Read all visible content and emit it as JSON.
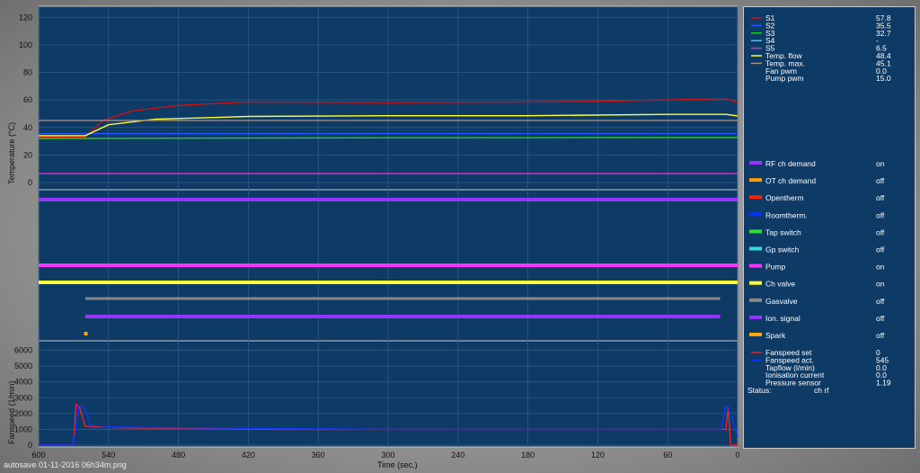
{
  "chart_data": [
    {
      "type": "line",
      "panel": "temperature",
      "ylabel": "Temperature (°C)",
      "ylim": [
        0,
        128
      ],
      "yticks": [
        0,
        20,
        40,
        60,
        80,
        100,
        120
      ],
      "xlim": [
        600,
        0
      ],
      "series": [
        {
          "name": "S1",
          "color": "#cc1111",
          "x": [
            600,
            560,
            545,
            520,
            480,
            420,
            300,
            180,
            120,
            60,
            10,
            3,
            0
          ],
          "y": [
            33,
            33,
            45,
            52,
            56,
            58.5,
            58,
            58.5,
            59,
            60,
            61,
            59,
            57.8
          ]
        },
        {
          "name": "S2",
          "color": "#2255ff",
          "x": [
            600,
            0
          ],
          "y": [
            35.5,
            35.5
          ]
        },
        {
          "name": "S3",
          "color": "#22cc22",
          "x": [
            600,
            300,
            0
          ],
          "y": [
            32,
            32.5,
            32.7
          ]
        },
        {
          "name": "S5",
          "color": "#cc33cc",
          "x": [
            600,
            0
          ],
          "y": [
            6.5,
            6.5
          ]
        },
        {
          "name": "Temp. flow",
          "color": "#ffff33",
          "x": [
            600,
            560,
            540,
            500,
            420,
            300,
            180,
            60,
            10,
            0
          ],
          "y": [
            34,
            34,
            42,
            46,
            48,
            48.5,
            48.5,
            49.5,
            49.5,
            48.4
          ]
        },
        {
          "name": "Temp. max.",
          "color": "#b08a7a",
          "x": [
            600,
            0
          ],
          "y": [
            45.1,
            45.1
          ]
        }
      ]
    },
    {
      "type": "line",
      "panel": "fanspeed",
      "ylabel": "Fanspeed (1/min)",
      "xlabel": "Time (sec.)",
      "ylim": [
        0,
        6600
      ],
      "yticks": [
        0,
        1000,
        2000,
        3000,
        4000,
        5000,
        6000
      ],
      "xlim": [
        600,
        0
      ],
      "xticks": [
        600,
        540,
        480,
        420,
        360,
        300,
        240,
        180,
        120,
        60,
        0
      ],
      "series": [
        {
          "name": "Fanspeed set",
          "color": "#ee2222",
          "x": [
            600,
            570,
            568,
            565,
            560,
            530,
            400,
            300,
            200,
            100,
            10,
            8,
            6,
            0
          ],
          "y": [
            0,
            0,
            2600,
            2400,
            1200,
            1100,
            1000,
            1000,
            1000,
            1000,
            1000,
            2400,
            0,
            0
          ]
        },
        {
          "name": "Fanspeed act.",
          "color": "#1133ff",
          "x": [
            600,
            570,
            566,
            560,
            555,
            540,
            480,
            400,
            300,
            200,
            100,
            14,
            10,
            6,
            0
          ],
          "y": [
            0,
            0,
            2500,
            2300,
            1100,
            1150,
            1100,
            1050,
            1000,
            1000,
            1000,
            1000,
            2500,
            2000,
            545
          ]
        }
      ]
    }
  ],
  "digital_bars": [
    {
      "name": "RF ch demand",
      "color": "#9933ff"
    },
    {
      "name": "OT ch demand",
      "color": "#ff9900"
    },
    {
      "name": "Opentherm",
      "color": "#ff2200"
    },
    {
      "name": "Roomtherm.",
      "color": "#0033ff"
    },
    {
      "name": "Tap switch",
      "color": "#33dd33"
    },
    {
      "name": "Gp switch",
      "color": "#33dddd"
    },
    {
      "name": "Pump",
      "color": "#ff33ff"
    },
    {
      "name": "Ch valve",
      "color": "#ffff33"
    },
    {
      "name": "Gasvalve",
      "color": "#888888"
    },
    {
      "name": "Ion. signal",
      "color": "#9933ff"
    },
    {
      "name": "Spark",
      "color": "#ffaa00"
    }
  ],
  "legend_top": [
    {
      "label": "S1",
      "value": "57.8",
      "color": "#cc1111"
    },
    {
      "label": "S2",
      "value": "35.5",
      "color": "#2255ff"
    },
    {
      "label": "S3",
      "value": "32.7",
      "color": "#22cc22"
    },
    {
      "label": "S4",
      "value": "-",
      "color": "#33ccff"
    },
    {
      "label": "S5",
      "value": "6.5",
      "color": "#cc33cc"
    },
    {
      "label": "Temp. flow",
      "value": "48.4",
      "color": "#ffff33"
    },
    {
      "label": "Temp. max.",
      "value": "45.1",
      "color": "#b08a7a"
    },
    {
      "label": "Fan pwm",
      "value": "0.0",
      "color": ""
    },
    {
      "label": "Pump pwm",
      "value": "15.0",
      "color": ""
    }
  ],
  "legend_states": [
    {
      "label": "RF ch demand",
      "value": "on",
      "color": "#9933ff"
    },
    {
      "label": "OT ch demand",
      "value": "off",
      "color": "#ff9900"
    },
    {
      "label": "Opentherm",
      "value": "off",
      "color": "#ff2200"
    },
    {
      "label": "Roomtherm.",
      "value": "off",
      "color": "#0033ff"
    },
    {
      "label": "Tap switch",
      "value": "off",
      "color": "#33dd33"
    },
    {
      "label": "Gp switch",
      "value": "off",
      "color": "#33dddd"
    },
    {
      "label": "Pump",
      "value": "on",
      "color": "#ff33ff"
    },
    {
      "label": "Ch valve",
      "value": "on",
      "color": "#ffff33"
    },
    {
      "label": "Gasvalve",
      "value": "off",
      "color": "#888888"
    },
    {
      "label": "Ion. signal",
      "value": "off",
      "color": "#9933ff"
    },
    {
      "label": "Spark",
      "value": "off",
      "color": "#ffaa00"
    }
  ],
  "legend_bottom": [
    {
      "label": "Fanspeed set",
      "value": "0",
      "color": "#ee2222"
    },
    {
      "label": "Fanspeed act.",
      "value": "545",
      "color": "#1133ff"
    },
    {
      "label": "Tapflow (l/min)",
      "value": "0.0",
      "color": ""
    },
    {
      "label": "Ionisation current",
      "value": "0.0",
      "color": ""
    },
    {
      "label": "Pressure sensor",
      "value": "1.19",
      "color": ""
    }
  ],
  "status": {
    "label": "Status:",
    "value": "ch rf"
  },
  "footer": "autosave 01-11-2016 06h34m.png"
}
